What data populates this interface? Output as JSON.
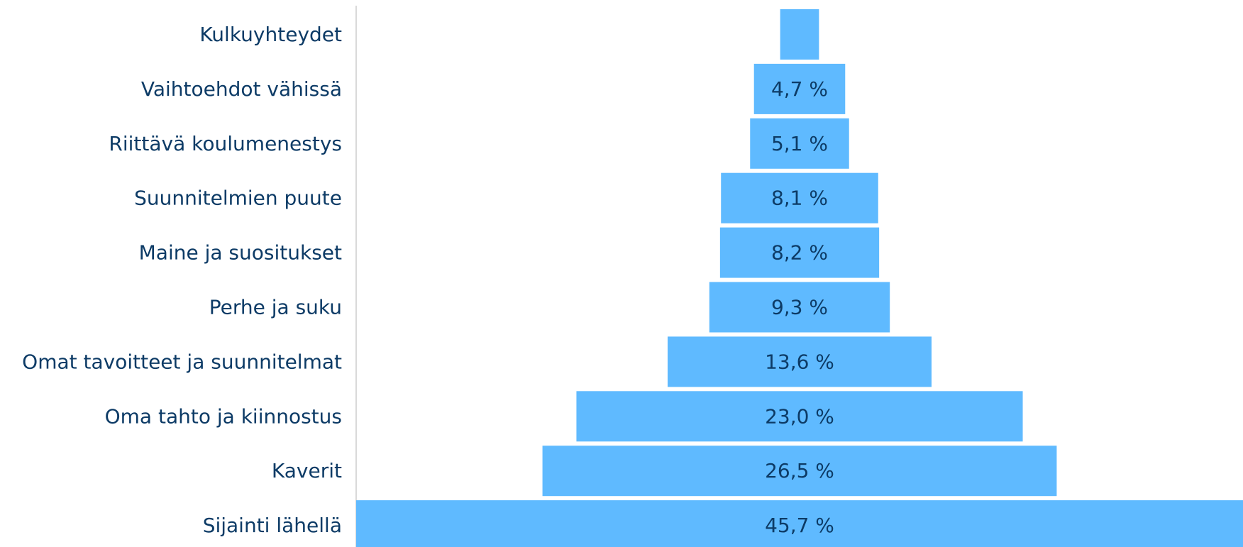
{
  "chart_data": {
    "type": "bar",
    "orientation": "horizontal",
    "style": "funnel",
    "categories": [
      "Kulkuyhteydet",
      "Vaihtoehdot vähissä",
      "Riittävä koulumenestys",
      "Suunnitelmien puute",
      "Maine ja suositukset",
      "Perhe ja suku",
      "Omat tavoitteet ja suunnitelmat",
      "Oma tahto ja kiinnostus",
      "Kaverit",
      "Sijainti lähellä"
    ],
    "values": [
      2.0,
      4.7,
      5.1,
      8.1,
      8.2,
      9.3,
      13.6,
      23.0,
      26.5,
      45.7
    ],
    "data_labels": [
      "",
      "4,7 %",
      "5,1 %",
      "8,1 %",
      "8,2 %",
      "9,3 %",
      "13,6 %",
      "23,0 %",
      "26,5 %",
      "45,7 %"
    ],
    "value_unit": "%",
    "xlim": [
      0,
      45.7
    ],
    "grid": false,
    "legend": "none",
    "colors": {
      "bar": "#5fbaff",
      "text": "#0d3b66",
      "axis": "#d9d9d9"
    }
  }
}
